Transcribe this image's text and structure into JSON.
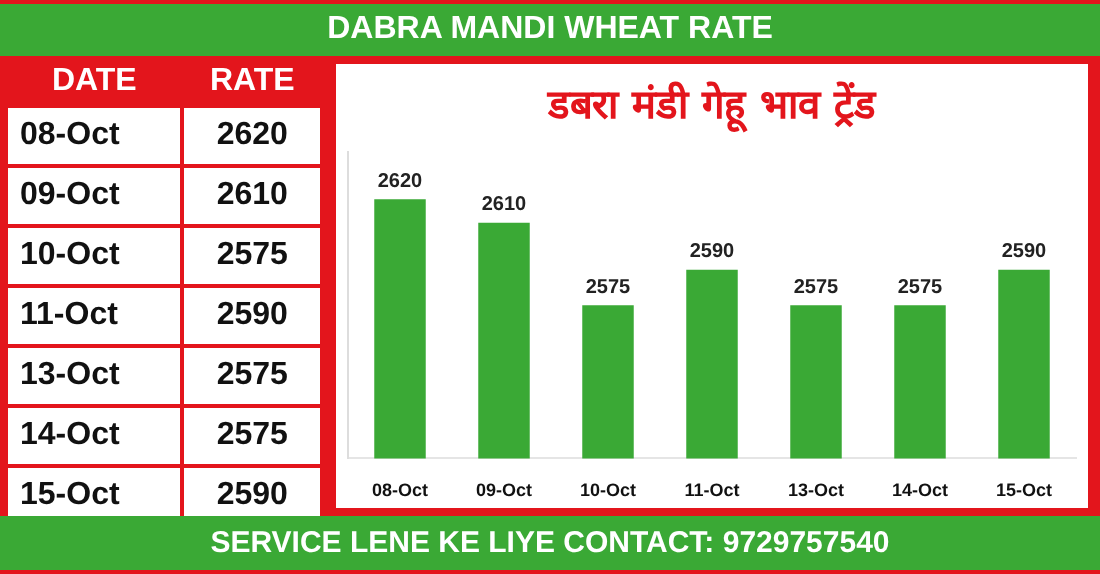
{
  "chart_data": [
    {
      "type": "other",
      "title": "DABRA MANDI WHEAT RATE",
      "categories": [
        "08-Oct",
        "09-Oct",
        "10-Oct",
        "11-Oct",
        "13-Oct",
        "14-Oct",
        "15-Oct"
      ],
      "values": [
        2620,
        2610,
        2575,
        2590,
        2575,
        2575,
        2590
      ],
      "data_labels": true,
      "annotations": [
        "DATE",
        "RATE",
        "SERVICE LENE KE LIYE CONTACT: 9729757540"
      ]
    },
    {
      "type": "bar",
      "title": "डबरा मंडी गेहू भाव ट्रेंड",
      "categories": [
        "08-Oct",
        "09-Oct",
        "10-Oct",
        "11-Oct",
        "13-Oct",
        "14-Oct",
        "15-Oct"
      ],
      "values": [
        2620,
        2610,
        2575,
        2590,
        2575,
        2575,
        2590
      ],
      "color": "#3aa935",
      "ylim": [
        2510,
        2640
      ],
      "tick_labels": "x",
      "grid": false,
      "legend": false,
      "data_labels": true
    }
  ]
}
